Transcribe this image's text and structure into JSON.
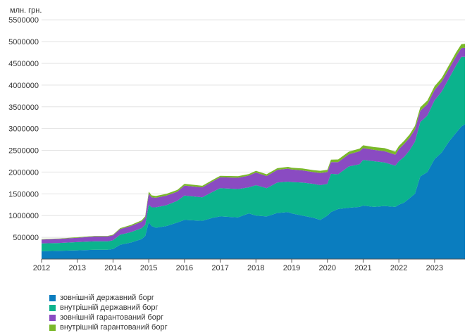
{
  "chart_data": {
    "type": "area",
    "stacked": true,
    "unit_label": "млн. грн.",
    "y_ticks": [
      500000,
      1000000,
      1500000,
      2000000,
      2500000,
      3000000,
      3500000,
      4000000,
      4500000,
      5000000,
      5500000
    ],
    "y_tick_labels": [
      "500000",
      "1000000",
      "1500000",
      "2000000",
      "2500000",
      "3000000",
      "3500000",
      "4000000",
      "4500000",
      "5000000",
      "5500000"
    ],
    "ylim": [
      0,
      5600000
    ],
    "xlim": [
      2012.0,
      2023.85
    ],
    "x_ticks": [
      2012,
      2013,
      2014,
      2015,
      2016,
      2017,
      2018,
      2019,
      2020,
      2021,
      2022,
      2023
    ],
    "x_tick_labels": [
      "2012",
      "2013",
      "2014",
      "2015",
      "2016",
      "2017",
      "2018",
      "2019",
      "2020",
      "2021",
      "2022",
      "2023"
    ],
    "grid": "horizontal",
    "legend_position": "bottom",
    "x": [
      2012.0,
      2012.5,
      2013.0,
      2013.5,
      2013.85,
      2014.0,
      2014.2,
      2014.5,
      2014.8,
      2014.9,
      2015.0,
      2015.08,
      2015.2,
      2015.5,
      2015.8,
      2016.0,
      2016.5,
      2016.8,
      2017.0,
      2017.5,
      2017.8,
      2018.0,
      2018.3,
      2018.6,
      2018.9,
      2019.0,
      2019.3,
      2019.6,
      2019.8,
      2020.0,
      2020.1,
      2020.3,
      2020.6,
      2020.9,
      2021.0,
      2021.3,
      2021.6,
      2021.9,
      2022.0,
      2022.15,
      2022.3,
      2022.45,
      2022.6,
      2022.8,
      2023.0,
      2023.2,
      2023.4,
      2023.6,
      2023.75,
      2023.85
    ],
    "series": [
      {
        "name": "зовнішній державний борг",
        "color": "#0a7dbf",
        "values": [
          180000,
          190000,
          200000,
          215000,
          215000,
          230000,
          330000,
          380000,
          460000,
          530000,
          850000,
          760000,
          720000,
          760000,
          840000,
          900000,
          880000,
          950000,
          980000,
          960000,
          1050000,
          1000000,
          980000,
          1060000,
          1080000,
          1050000,
          1000000,
          950000,
          900000,
          1000000,
          1080000,
          1150000,
          1180000,
          1200000,
          1230000,
          1200000,
          1220000,
          1200000,
          1250000,
          1300000,
          1400000,
          1500000,
          1900000,
          2000000,
          2300000,
          2450000,
          2700000,
          2900000,
          3050000,
          3100000
        ]
      },
      {
        "name": "внутрішній державний борг",
        "color": "#0bb38d",
        "values": [
          180000,
          180000,
          190000,
          195000,
          195000,
          200000,
          230000,
          240000,
          250000,
          260000,
          400000,
          430000,
          470000,
          480000,
          500000,
          560000,
          540000,
          600000,
          650000,
          650000,
          600000,
          700000,
          650000,
          700000,
          700000,
          720000,
          760000,
          780000,
          800000,
          730000,
          880000,
          800000,
          950000,
          980000,
          1050000,
          1050000,
          1000000,
          950000,
          1000000,
          1050000,
          1100000,
          1200000,
          1250000,
          1300000,
          1350000,
          1400000,
          1450000,
          1550000,
          1600000,
          1550000
        ]
      },
      {
        "name": "зовнішній гарантований борг",
        "color": "#8a4bc2",
        "values": [
          90000,
          95000,
          100000,
          110000,
          110000,
          115000,
          130000,
          140000,
          150000,
          160000,
          250000,
          230000,
          220000,
          220000,
          210000,
          230000,
          230000,
          240000,
          250000,
          260000,
          270000,
          290000,
          280000,
          290000,
          300000,
          290000,
          280000,
          270000,
          280000,
          270000,
          270000,
          280000,
          280000,
          300000,
          270000,
          260000,
          260000,
          250000,
          280000,
          300000,
          290000,
          280000,
          260000,
          260000,
          240000,
          230000,
          220000,
          210000,
          200000,
          210000
        ]
      },
      {
        "name": "внутрішній гарантований борг",
        "color": "#7ab82a",
        "values": [
          10000,
          10000,
          12000,
          12000,
          12000,
          15000,
          20000,
          25000,
          30000,
          35000,
          50000,
          45000,
          40000,
          40000,
          40000,
          40000,
          35000,
          35000,
          35000,
          35000,
          35000,
          40000,
          40000,
          40000,
          40000,
          40000,
          45000,
          45000,
          50000,
          50000,
          55000,
          60000,
          60000,
          60000,
          65000,
          65000,
          70000,
          70000,
          70000,
          70000,
          75000,
          80000,
          80000,
          85000,
          85000,
          85000,
          85000,
          90000,
          90000,
          90000
        ]
      }
    ]
  }
}
